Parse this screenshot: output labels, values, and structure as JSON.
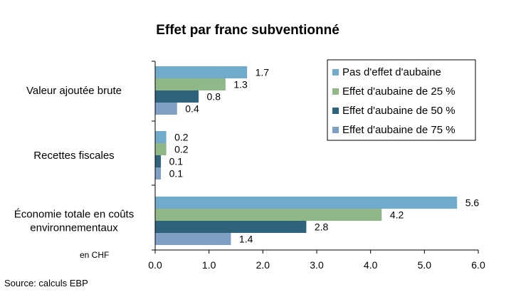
{
  "chart_data": {
    "type": "bar",
    "orientation": "horizontal",
    "title": "Effet par franc subventionné",
    "categories": [
      [
        "Valeur ajoutée brute"
      ],
      [
        "Recettes fiscales"
      ],
      [
        "Économie totale en coûts",
        "environnementaux"
      ]
    ],
    "series": [
      {
        "name": "Pas d'effet d'aubaine",
        "color": "#71abcc",
        "values": [
          1.7,
          0.2,
          5.6
        ],
        "labels": [
          "1.7",
          "0.2",
          "5.6"
        ]
      },
      {
        "name": "Effet d'aubaine de 25 %",
        "color": "#8fb788",
        "values": [
          1.3,
          0.2,
          4.2
        ],
        "labels": [
          "1.3",
          "0.2",
          "4.2"
        ]
      },
      {
        "name": "Effet d'aubaine de 50 %",
        "color": "#2f637b",
        "values": [
          0.8,
          0.1,
          2.8
        ],
        "labels": [
          "0.8",
          "0.1",
          "2.8"
        ]
      },
      {
        "name": "Effet d'aubaine de 75 %",
        "color": "#7d9fc3",
        "values": [
          0.4,
          0.1,
          1.4
        ],
        "labels": [
          "0.4",
          "0.1",
          "1.4"
        ]
      }
    ],
    "xlim": [
      0,
      6
    ],
    "xticks": [
      "0.0",
      "1.0",
      "2.0",
      "3.0",
      "4.0",
      "5.0",
      "6.0"
    ],
    "unit_label": "en CHF",
    "source": "Source: calculs EBP",
    "grid": false,
    "legend_position": "top-right"
  }
}
